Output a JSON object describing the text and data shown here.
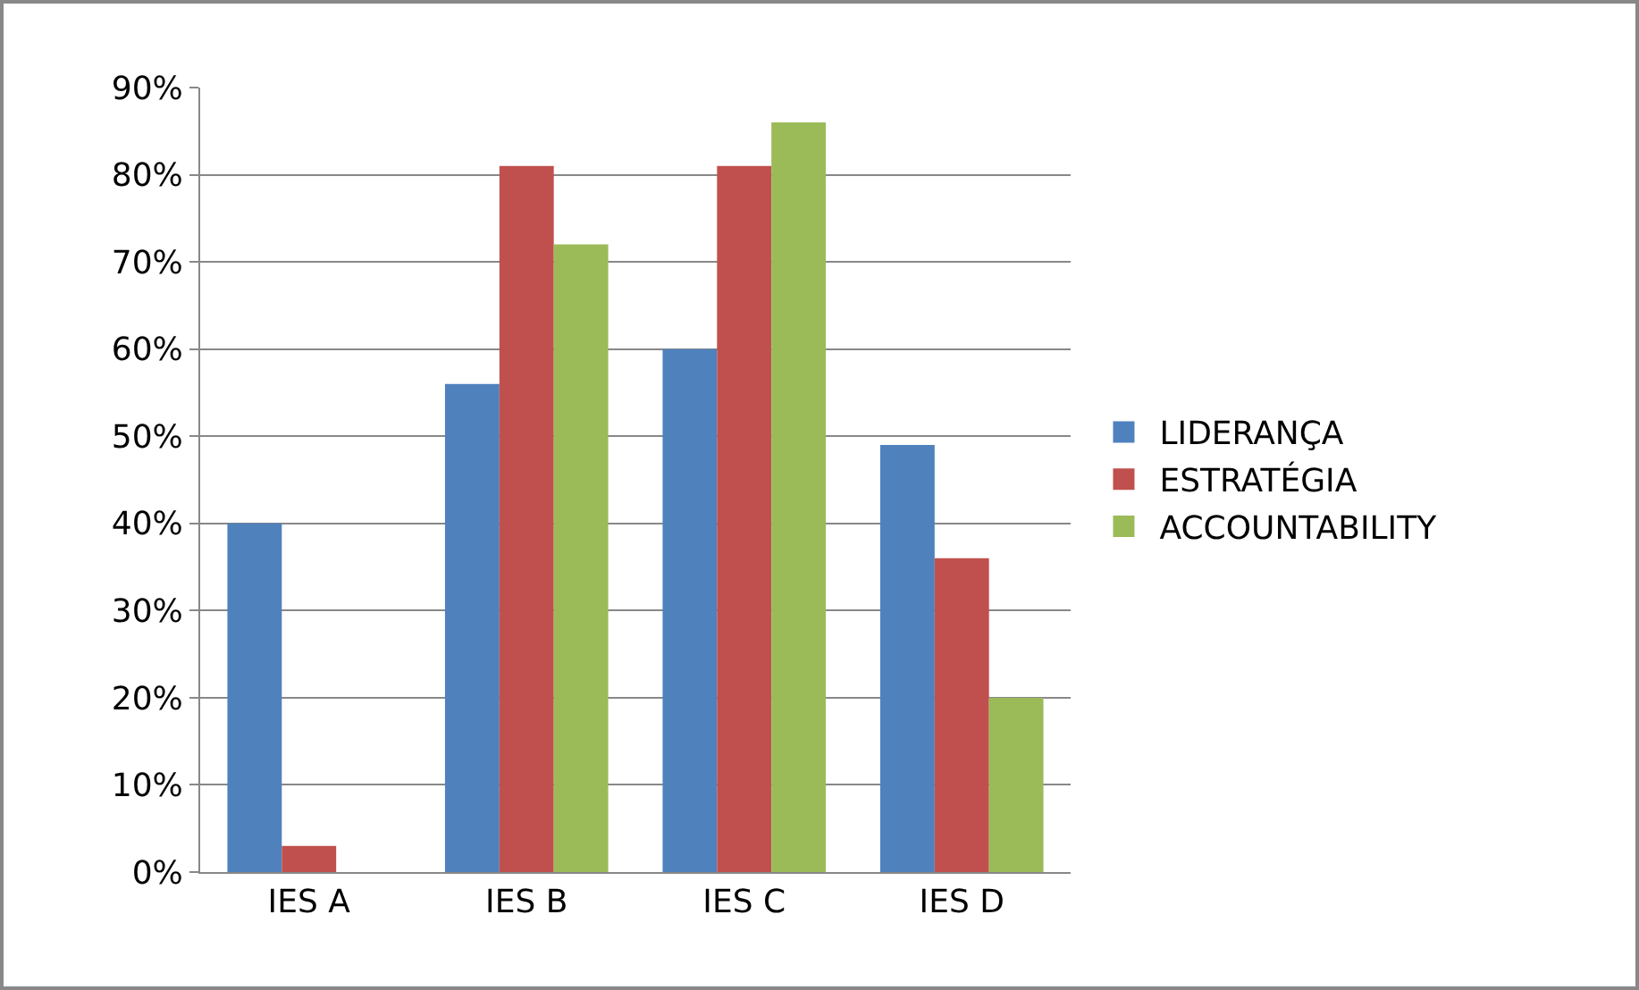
{
  "chart_data": {
    "type": "bar",
    "categories": [
      "IES A",
      "IES B",
      "IES C",
      "IES D"
    ],
    "series": [
      {
        "name": "LIDERANÇA",
        "color": "#4f81bd",
        "values": [
          40,
          56,
          60,
          49
        ]
      },
      {
        "name": "ESTRATÉGIA",
        "color": "#c0504d",
        "values": [
          3,
          81,
          81,
          36
        ]
      },
      {
        "name": "ACCOUNTABILITY",
        "color": "#9bbb59",
        "values": [
          0,
          72,
          86,
          20
        ]
      }
    ],
    "ylim": [
      0,
      90
    ],
    "yticks": [
      {
        "value": 0,
        "label": "0%"
      },
      {
        "value": 10,
        "label": "10%"
      },
      {
        "value": 20,
        "label": "20%"
      },
      {
        "value": 30,
        "label": "30%"
      },
      {
        "value": 40,
        "label": "40%"
      },
      {
        "value": 50,
        "label": "50%"
      },
      {
        "value": 60,
        "label": "60%"
      },
      {
        "value": 70,
        "label": "70%"
      },
      {
        "value": 80,
        "label": "80%"
      },
      {
        "value": 90,
        "label": "90%"
      }
    ],
    "grid": "y",
    "legend": "right"
  }
}
